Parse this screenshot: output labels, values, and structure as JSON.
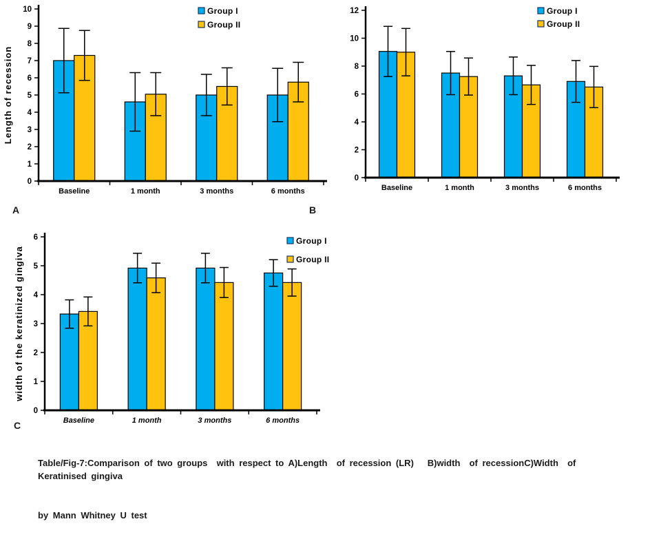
{
  "colors": {
    "group1": "#00AEEF",
    "group2": "#FFC20E",
    "bar_border": "#000000",
    "legend_border": "#17375E",
    "axis": "#000000",
    "text": "#000000"
  },
  "caption": {
    "line1": "Table/Fig-7:Comparison of two groups  with respect to A)Length  of recession (LR)   B)width  of recessionC)Width  of Keratinised gingiva",
    "line2": "by Mann Whitney U test"
  },
  "chart_data": [
    {
      "id": "A",
      "type": "bar",
      "panel_label": "A",
      "title": "",
      "xlabel": "",
      "ylabel": "Length of recession",
      "categories": [
        "Baseline",
        "1 month",
        "3 months",
        "6 months"
      ],
      "ylim": [
        0,
        10
      ],
      "ytick_step": 1,
      "grid": false,
      "legend_position": "top-right",
      "xtick_italic": false,
      "series": [
        {
          "name": "Group I",
          "values": [
            7.0,
            4.6,
            5.0,
            5.0
          ],
          "errors": [
            1.87,
            1.7,
            1.2,
            1.55
          ]
        },
        {
          "name": "Group II",
          "values": [
            7.3,
            5.05,
            5.5,
            5.75
          ],
          "errors": [
            1.45,
            1.25,
            1.08,
            1.15
          ]
        }
      ]
    },
    {
      "id": "B",
      "type": "bar",
      "panel_label": "B",
      "title": "",
      "xlabel": "",
      "ylabel": "",
      "categories": [
        "Baseline",
        "1 month",
        "3 months",
        "6 months"
      ],
      "ylim": [
        0,
        12
      ],
      "ytick_step": 2,
      "grid": false,
      "legend_position": "top-right",
      "xtick_italic": false,
      "series": [
        {
          "name": "Group I",
          "values": [
            9.05,
            7.5,
            7.3,
            6.9
          ],
          "errors": [
            1.8,
            1.55,
            1.35,
            1.5
          ]
        },
        {
          "name": "Group II",
          "values": [
            9.0,
            7.25,
            6.65,
            6.5
          ],
          "errors": [
            1.7,
            1.33,
            1.4,
            1.48
          ]
        }
      ]
    },
    {
      "id": "C",
      "type": "bar",
      "panel_label": "C",
      "title": "",
      "xlabel": "",
      "ylabel": "width of the keratinized gingiva",
      "categories": [
        "Baseline",
        "1 month",
        "3 months",
        "6 months"
      ],
      "ylim": [
        0,
        6
      ],
      "ytick_step": 1,
      "grid": false,
      "legend_position": "top-right",
      "xtick_italic": true,
      "series": [
        {
          "name": "Group I",
          "values": [
            3.33,
            4.92,
            4.92,
            4.75
          ],
          "errors": [
            0.49,
            0.51,
            0.51,
            0.46
          ]
        },
        {
          "name": "Group II",
          "values": [
            3.42,
            4.58,
            4.42,
            4.42
          ],
          "errors": [
            0.5,
            0.51,
            0.52,
            0.47
          ]
        }
      ]
    }
  ]
}
